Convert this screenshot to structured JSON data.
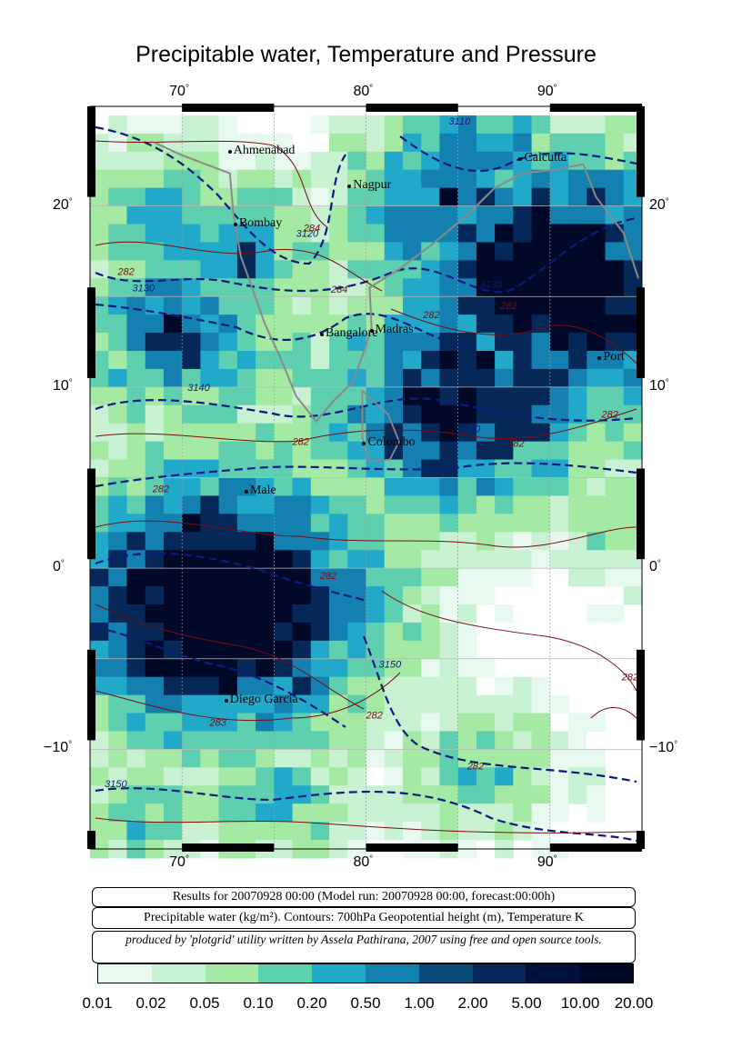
{
  "title": "Precipitable water, Temperature and Pressure",
  "axes": {
    "lon_ticks": [
      "70",
      "80",
      "90"
    ],
    "lat_ticks": [
      "20",
      "10",
      "0",
      "−10"
    ],
    "degree_symbol": "°"
  },
  "cities": [
    {
      "name": "Ahmenabad",
      "lon": 72.6,
      "lat": 23.0
    },
    {
      "name": "Nagpur",
      "lon": 79.1,
      "lat": 21.1
    },
    {
      "name": "Calcutta",
      "lon": 88.4,
      "lat": 22.6
    },
    {
      "name": "Bombay",
      "lon": 72.9,
      "lat": 19.0
    },
    {
      "name": "Bangalore",
      "lon": 77.6,
      "lat": 12.9
    },
    {
      "name": "Madras",
      "lon": 80.3,
      "lat": 13.1
    },
    {
      "name": "Port",
      "lon": 92.7,
      "lat": 11.6
    },
    {
      "name": "Colombo",
      "lon": 79.9,
      "lat": 6.9
    },
    {
      "name": "Male",
      "lon": 73.5,
      "lat": 4.2
    },
    {
      "name": "Diego Garcia",
      "lon": 72.4,
      "lat": -7.3
    }
  ],
  "contour_labels": {
    "geopotential": [
      "3110",
      "3120",
      "3130",
      "3130",
      "3140",
      "3140",
      "3150",
      "3150"
    ],
    "temperature": [
      "284",
      "282",
      "284",
      "282",
      "282",
      "282",
      "282",
      "282",
      "282",
      "282",
      "283",
      "282",
      "282",
      "282"
    ]
  },
  "captions": {
    "run": "Results for 20070928 00:00 (Model run: 20070928 00:00, forecast:00:00h)",
    "variables": "Precipitable water (kg/m²).  Contours: 700hPa Geopotential height (m), Temperature K",
    "credit": "produced by 'plotgrid' utility written by Assela Pathirana, 2007 using free and open source tools."
  },
  "colorbar": {
    "colors": [
      "#e8faf0",
      "#c8f2d2",
      "#a4eaa4",
      "#5ed0b0",
      "#22a8c8",
      "#1480b0",
      "#0a4a78",
      "#062858",
      "#04103c",
      "#020828"
    ],
    "labels": [
      "0.01",
      "0.02",
      "0.05",
      "0.10",
      "0.20",
      "0.50",
      "1.00",
      "2.00",
      "5.00",
      "10.00",
      "20.00"
    ]
  },
  "extent": {
    "lon_min": 65,
    "lon_max": 95,
    "lat_min": -15.5,
    "lat_max": 25.5
  }
}
